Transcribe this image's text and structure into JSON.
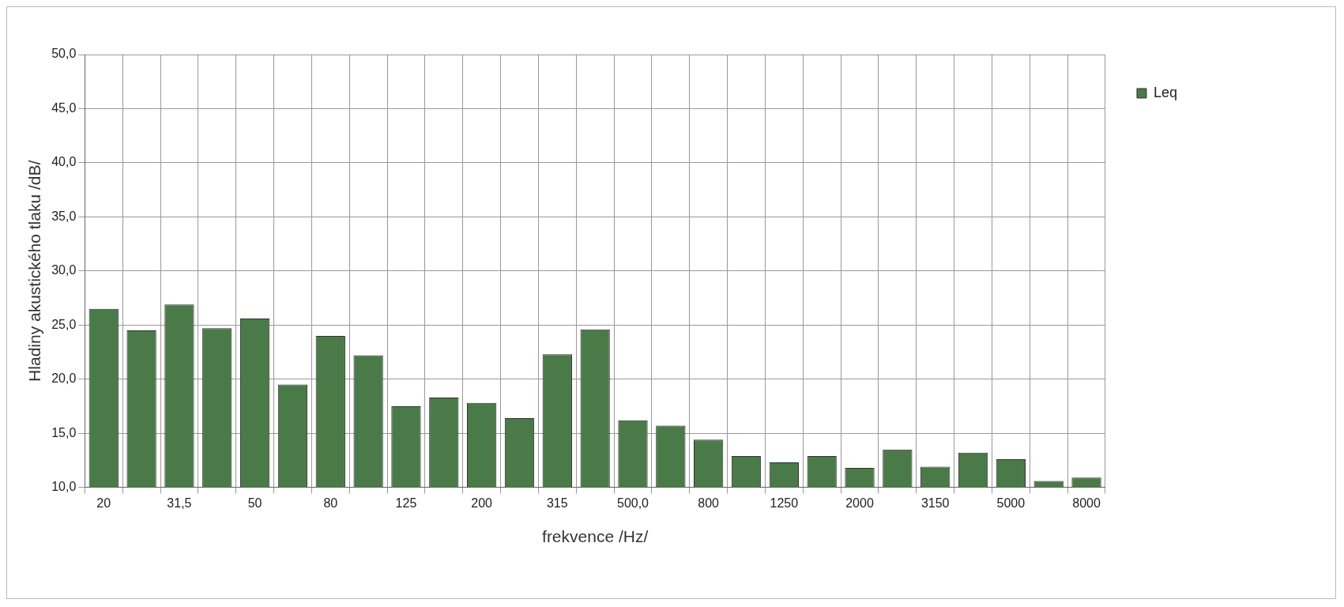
{
  "chart_data": {
    "type": "bar",
    "xlabel": "frekvence /Hz/",
    "ylabel": "Hladiny akustického tlaku /dB/",
    "categories": [
      "20",
      null,
      "31,5",
      null,
      "50",
      null,
      "80",
      null,
      "125",
      null,
      "200",
      null,
      "315",
      null,
      "500,0",
      null,
      "800",
      null,
      "1250",
      null,
      "2000",
      null,
      "3150",
      null,
      "5000",
      null,
      "8000"
    ],
    "series": [
      {
        "name": "Leq",
        "color": "#4a7a48",
        "values": [
          26.5,
          24.5,
          26.9,
          24.7,
          25.6,
          19.5,
          24.0,
          22.2,
          17.5,
          18.3,
          17.8,
          16.4,
          22.3,
          24.6,
          16.2,
          15.7,
          14.4,
          12.9,
          12.3,
          12.9,
          11.8,
          13.5,
          11.9,
          13.2,
          12.6,
          10.6,
          10.9
        ]
      }
    ],
    "ylim": [
      10,
      50
    ],
    "yticks": [
      {
        "value": 10,
        "label": "10,0"
      },
      {
        "value": 15,
        "label": "15,0"
      },
      {
        "value": 20,
        "label": "20,0"
      },
      {
        "value": 25,
        "label": "25,0"
      },
      {
        "value": 30,
        "label": "30,0"
      },
      {
        "value": 35,
        "label": "35,0"
      },
      {
        "value": 40,
        "label": "40,0"
      },
      {
        "value": 45,
        "label": "45,0"
      },
      {
        "value": 50,
        "label": "50,0"
      }
    ],
    "grid": true,
    "legend": "top right"
  }
}
